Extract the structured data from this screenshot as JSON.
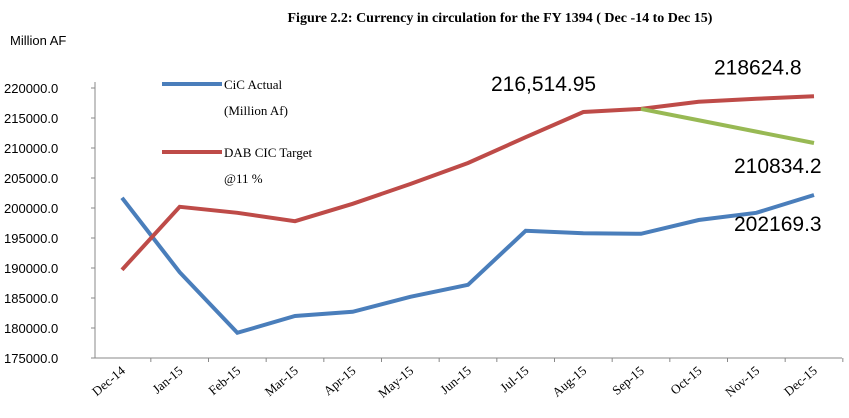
{
  "chart_data": {
    "type": "line",
    "title": "Figure 2.2: Currency in  circulation for the FY 1394 ( Dec -14 to Dec 15)",
    "y_label": "Million AF",
    "categories": [
      "Dec-14",
      "Jan-15",
      "Feb-15",
      "Mar-15",
      "Apr-15",
      "May-15",
      "Jun-15",
      "Jul-15",
      "Aug-15",
      "Sep-15",
      "Oct-15",
      "Nov-15",
      "Dec-15"
    ],
    "ylim": [
      175000,
      220000
    ],
    "yticks": [
      {
        "value": 175000,
        "label": "175000.0"
      },
      {
        "value": 180000,
        "label": "180000.0"
      },
      {
        "value": 185000,
        "label": "185000.0"
      },
      {
        "value": 190000,
        "label": "190000.0"
      },
      {
        "value": 195000,
        "label": "195000.0"
      },
      {
        "value": 200000,
        "label": "200000.0"
      },
      {
        "value": 205000,
        "label": "205000.0"
      },
      {
        "value": 210000,
        "label": "210000.0"
      },
      {
        "value": 215000,
        "label": "215000.0"
      },
      {
        "value": 220000,
        "label": "220000.0"
      }
    ],
    "grid": false,
    "legend": "upper left",
    "series": [
      {
        "name": "CiC Actual\n(Million Af)",
        "color": "#4a7ebb",
        "values": [
          201700,
          189300,
          179200,
          182000,
          182700,
          185200,
          187200,
          196200,
          195800,
          195700,
          198000,
          199200,
          202169.3
        ],
        "value_labels": [
          null,
          null,
          null,
          null,
          null,
          null,
          null,
          null,
          null,
          null,
          null,
          null,
          "202169.3"
        ]
      },
      {
        "name": "DAB CIC  Target\n@11 %",
        "color": "#be4b48",
        "values": [
          189700,
          200200,
          199200,
          197800,
          200700,
          204000,
          207500,
          211800,
          216000,
          216514.95,
          217700,
          218200,
          218624.8
        ],
        "value_labels": [
          null,
          null,
          null,
          null,
          null,
          null,
          null,
          null,
          null,
          null,
          null,
          null,
          "218624.8"
        ]
      },
      {
        "color": "#98b954",
        "values": [
          null,
          null,
          null,
          null,
          null,
          null,
          null,
          null,
          null,
          216514.95,
          214621,
          212728,
          210834.2
        ],
        "value_labels": [
          null,
          null,
          null,
          null,
          null,
          null,
          null,
          null,
          null,
          "216,514.95",
          null,
          null,
          "210834.2"
        ]
      }
    ]
  }
}
